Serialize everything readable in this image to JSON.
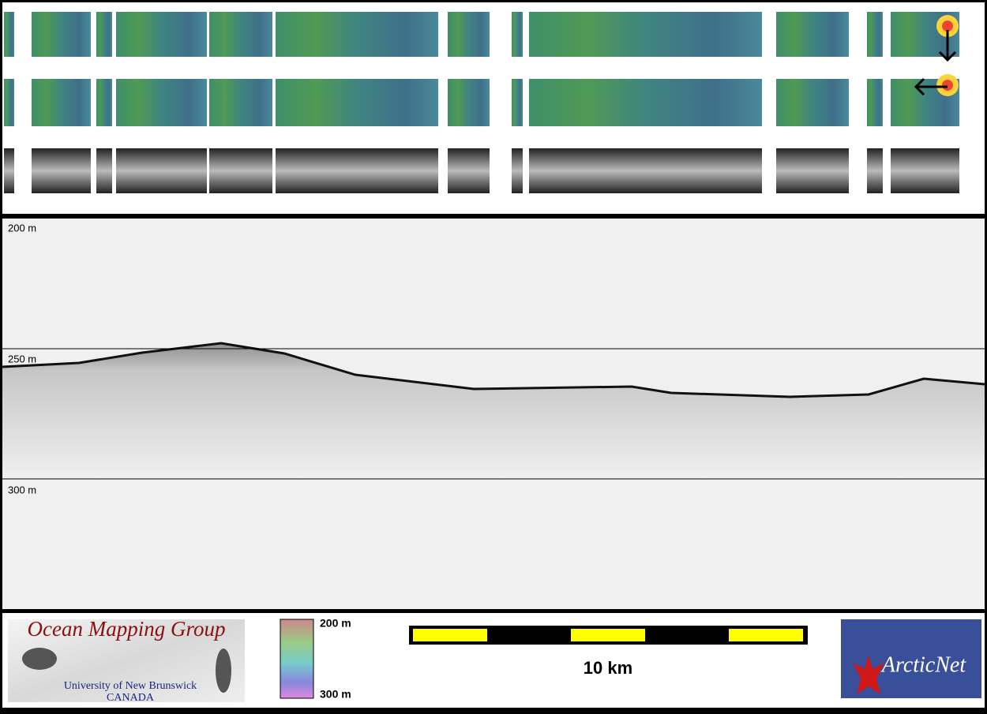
{
  "echogram": {
    "depth_labels": [
      "200 m",
      "250 m",
      "300 m"
    ]
  },
  "colorbar": {
    "top_label": "200 m",
    "bottom_label": "300 m"
  },
  "scale_bar": {
    "label": "10 km"
  },
  "logos": {
    "omg": {
      "title": "Ocean Mapping Group",
      "university": "University of New Brunswick",
      "country": "CANADA"
    },
    "arcticnet": "ArcticNet"
  }
}
